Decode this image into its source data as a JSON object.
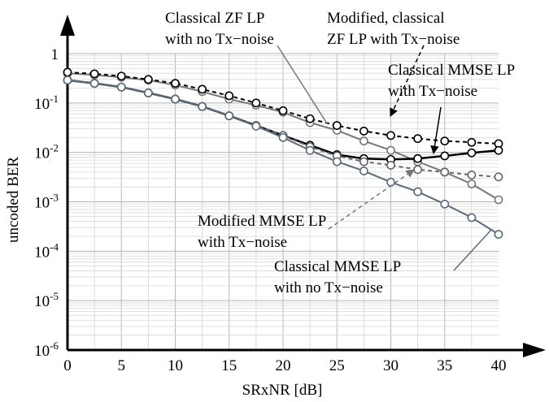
{
  "chart_data": {
    "type": "line",
    "xlabel": "SRxNR [dB]",
    "ylabel": "uncoded BER",
    "xlim": [
      0,
      40
    ],
    "ylim": [
      1e-06,
      1
    ],
    "yscale": "log",
    "grid": true,
    "x_ticks": [
      "0",
      "5",
      "10",
      "15",
      "20",
      "25",
      "30",
      "35",
      "40"
    ],
    "y_ticks": [
      {
        "value": 1,
        "base": "1",
        "exp": ""
      },
      {
        "value": 0.1,
        "base": "10",
        "exp": "-1"
      },
      {
        "value": 0.01,
        "base": "10",
        "exp": "-2"
      },
      {
        "value": 0.001,
        "base": "10",
        "exp": "-3"
      },
      {
        "value": 0.0001,
        "base": "10",
        "exp": "-4"
      },
      {
        "value": 1e-05,
        "base": "10",
        "exp": "-5"
      },
      {
        "value": 1e-06,
        "base": "10",
        "exp": "-6"
      }
    ],
    "x": [
      0,
      2.5,
      5,
      7.5,
      10,
      12.5,
      15,
      17.5,
      20,
      22.5,
      25,
      27.5,
      30,
      32.5,
      35,
      37.5,
      40
    ],
    "series": [
      {
        "key": "zf_no_tx",
        "color": "#777777",
        "dash": false,
        "width": 2,
        "values": [
          0.4,
          0.37,
          0.33,
          0.29,
          0.23,
          0.17,
          0.12,
          0.09,
          0.065,
          0.04,
          0.028,
          0.017,
          0.011,
          0.0065,
          0.004,
          0.0023,
          0.0011
        ]
      },
      {
        "key": "zf_mod_tx",
        "color": "#000000",
        "dash": true,
        "width": 2,
        "values": [
          0.42,
          0.39,
          0.35,
          0.3,
          0.25,
          0.19,
          0.14,
          0.1,
          0.07,
          0.048,
          0.035,
          0.027,
          0.022,
          0.019,
          0.017,
          0.016,
          0.015
        ]
      },
      {
        "key": "mmse_tx",
        "color": "#000000",
        "dash": false,
        "width": 2.5,
        "values": [
          0.29,
          0.25,
          0.21,
          0.16,
          0.12,
          0.085,
          0.055,
          0.035,
          0.022,
          0.014,
          0.009,
          0.0075,
          0.0072,
          0.0075,
          0.0085,
          0.0098,
          0.011
        ]
      },
      {
        "key": "mmse_mod_tx",
        "color": "#666666",
        "dash": true,
        "width": 2,
        "values": [
          0.29,
          0.25,
          0.21,
          0.16,
          0.12,
          0.085,
          0.055,
          0.035,
          0.022,
          0.013,
          0.0085,
          0.0065,
          0.0055,
          0.0045,
          0.004,
          0.0035,
          0.0032
        ]
      },
      {
        "key": "mmse_no_tx",
        "color": "#5a6b7b",
        "dash": false,
        "width": 2,
        "values": [
          0.29,
          0.25,
          0.21,
          0.16,
          0.12,
          0.085,
          0.055,
          0.034,
          0.02,
          0.011,
          0.0065,
          0.0042,
          0.0025,
          0.0016,
          0.0009,
          0.00048,
          0.00022
        ]
      }
    ],
    "annotations": [
      {
        "key": "zf_no_tx_label",
        "lines": [
          "Classical ZF LP",
          "with no Tx−noise"
        ]
      },
      {
        "key": "zf_mod_label",
        "lines": [
          "Modified, classical",
          "ZF LP with Tx−noise"
        ]
      },
      {
        "key": "mmse_tx_label",
        "lines": [
          "Classical MMSE LP",
          "with Tx−noise"
        ]
      },
      {
        "key": "mmse_mod_label",
        "lines": [
          "Modified MMSE LP",
          "with Tx−noise"
        ]
      },
      {
        "key": "mmse_no_tx_label",
        "lines": [
          "Classical MMSE LP",
          "with no Tx−noise"
        ]
      }
    ]
  }
}
